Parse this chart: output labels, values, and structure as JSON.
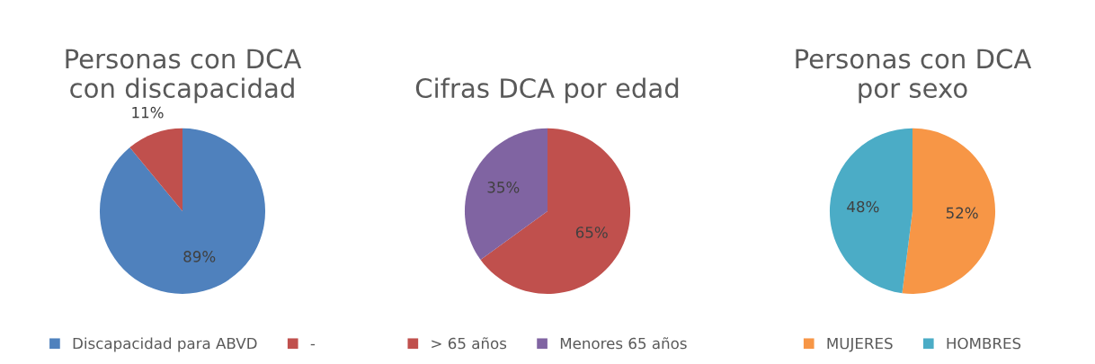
{
  "chart_data": [
    {
      "type": "pie",
      "title": "Personas con DCA\ncon discapacidad",
      "categories": [
        "Discapacidad para ABVD",
        "-"
      ],
      "values": [
        89,
        11
      ],
      "colors": [
        "#4f81bd",
        "#c0504d"
      ],
      "value_labels": [
        "89%",
        "11%"
      ],
      "legend": "bottom"
    },
    {
      "type": "pie",
      "title": "Cifras DCA por edad",
      "categories": [
        "> 65 años",
        "Menores 65 años"
      ],
      "values": [
        65,
        35
      ],
      "colors": [
        "#c0504d",
        "#8064a2"
      ],
      "value_labels": [
        "65%",
        "35%"
      ],
      "legend": "bottom"
    },
    {
      "type": "pie",
      "title": "Personas con DCA\npor sexo",
      "categories": [
        "MUJERES",
        "HOMBRES"
      ],
      "values": [
        52,
        48
      ],
      "colors": [
        "#f79646",
        "#4bacc6"
      ],
      "value_labels": [
        "52%",
        "48%"
      ],
      "legend": "bottom"
    }
  ]
}
